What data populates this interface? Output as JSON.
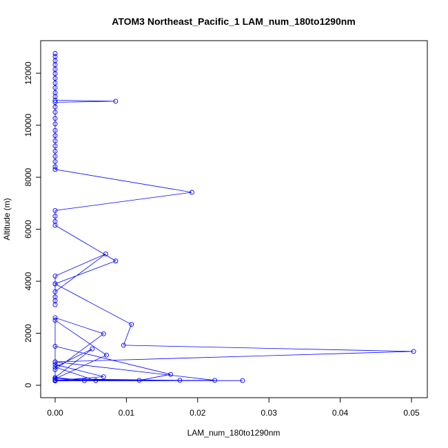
{
  "chart_data": {
    "type": "line",
    "title": "ATOM3 Northeast_Pacific_1 LAM_num_180to1290nm",
    "xlabel": "LAM_num_180to1290nm",
    "ylabel": "Altitude (m)",
    "xlim": [
      0,
      0.05
    ],
    "ylim": [
      0,
      12800
    ],
    "x_ticks": [
      0,
      0.01,
      0.02,
      0.03,
      0.04,
      0.05
    ],
    "x_tick_labels": [
      "0.00",
      "0.01",
      "0.02",
      "0.03",
      "0.04",
      "0.05"
    ],
    "y_ticks": [
      0,
      2000,
      4000,
      6000,
      8000,
      10000,
      12000
    ],
    "y_tick_labels": [
      "0",
      "2000",
      "4000",
      "6000",
      "8000",
      "10000",
      "12000"
    ],
    "grid": false,
    "line_color": "#0000ff",
    "series": [
      {
        "points": [
          {
            "x": 0.0,
            "y": 12760
          },
          {
            "x": 0.0,
            "y": 12640
          },
          {
            "x": 0.0,
            "y": 12480
          },
          {
            "x": 0.0,
            "y": 12320
          },
          {
            "x": 0.0,
            "y": 12150
          },
          {
            "x": 0.0,
            "y": 11980
          },
          {
            "x": 0.0,
            "y": 11800
          },
          {
            "x": 0.0,
            "y": 11620
          },
          {
            "x": 0.0,
            "y": 11440
          },
          {
            "x": 0.0,
            "y": 11250
          },
          {
            "x": 0.0,
            "y": 11100
          },
          {
            "x": 0.0,
            "y": 10960
          },
          {
            "x": 0.0085,
            "y": 10920
          },
          {
            "x": 0.0,
            "y": 10880
          },
          {
            "x": 0.0,
            "y": 10700
          },
          {
            "x": 0.0,
            "y": 10500
          },
          {
            "x": 0.0,
            "y": 10260
          },
          {
            "x": 0.0,
            "y": 10050
          },
          {
            "x": 0.0,
            "y": 9800
          },
          {
            "x": 0.0,
            "y": 9600
          },
          {
            "x": 0.0,
            "y": 9400
          },
          {
            "x": 0.0,
            "y": 9200
          },
          {
            "x": 0.0,
            "y": 9000
          },
          {
            "x": 0.0,
            "y": 8800
          },
          {
            "x": 0.0,
            "y": 8600
          },
          {
            "x": 0.0,
            "y": 8400
          },
          {
            "x": 0.0,
            "y": 8300
          },
          {
            "x": 0.0192,
            "y": 7420
          },
          {
            "x": 0.0,
            "y": 6720
          },
          {
            "x": 0.0,
            "y": 6500
          },
          {
            "x": 0.0,
            "y": 6300
          },
          {
            "x": 0.0,
            "y": 6150
          },
          {
            "x": 0.0085,
            "y": 4780
          },
          {
            "x": 0.0,
            "y": 3900
          },
          {
            "x": 0.0,
            "y": 4200
          },
          {
            "x": 0.0071,
            "y": 5050
          },
          {
            "x": 0.0,
            "y": 3600
          },
          {
            "x": 0.0,
            "y": 3400
          },
          {
            "x": 0.0,
            "y": 3250
          },
          {
            "x": 0.0,
            "y": 3100
          },
          {
            "x": 0.0,
            "y": 3900
          },
          {
            "x": 0.0107,
            "y": 2340
          },
          {
            "x": 0.0096,
            "y": 1540
          },
          {
            "x": 0.0503,
            "y": 1300
          },
          {
            "x": 0.0,
            "y": 900
          },
          {
            "x": 0.0,
            "y": 2600
          },
          {
            "x": 0.0068,
            "y": 1980
          },
          {
            "x": 0.0,
            "y": 600
          },
          {
            "x": 0.0,
            "y": 2500
          },
          {
            "x": 0.0072,
            "y": 1160
          },
          {
            "x": 0.0,
            "y": 250
          },
          {
            "x": 0.0,
            "y": 1500
          },
          {
            "x": 0.0162,
            "y": 420
          },
          {
            "x": 0.0118,
            "y": 190
          },
          {
            "x": 0.0,
            "y": 250
          },
          {
            "x": 0.0175,
            "y": 190
          },
          {
            "x": 0.0,
            "y": 200
          },
          {
            "x": 0.0,
            "y": 900
          },
          {
            "x": 0.0224,
            "y": 190
          },
          {
            "x": 0.0,
            "y": 180
          },
          {
            "x": 0.0263,
            "y": 180
          },
          {
            "x": 0.0,
            "y": 170
          },
          {
            "x": 0.0,
            "y": 800
          },
          {
            "x": 0.0068,
            "y": 330
          },
          {
            "x": 0.0,
            "y": 180
          },
          {
            "x": 0.0057,
            "y": 180
          },
          {
            "x": 0.0,
            "y": 700
          },
          {
            "x": 0.0052,
            "y": 1400
          },
          {
            "x": 0.0,
            "y": 300
          },
          {
            "x": 0.0041,
            "y": 180
          },
          {
            "x": 0.0,
            "y": 190
          }
        ]
      }
    ]
  }
}
